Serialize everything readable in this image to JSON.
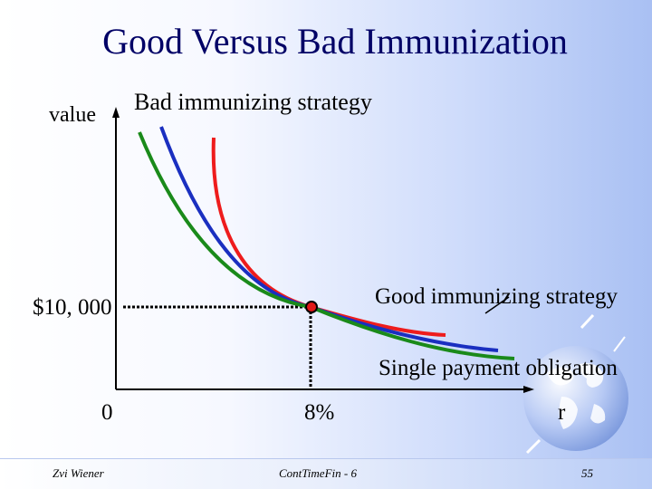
{
  "slide": {
    "title": "Good Versus Bad Immunization",
    "footer": {
      "author": "Zvi Wiener",
      "course": "ContTimeFin - 6",
      "page": "55"
    }
  },
  "diagram": {
    "y_axis_label": "value",
    "x_axis_label": "r",
    "origin_label": "0",
    "rate_label": "8%",
    "value_label": "$10, 000",
    "labels": {
      "bad": "Bad immunizing strategy",
      "good": "Good immunizing strategy",
      "single": "Single payment obligation"
    },
    "curve_colors": {
      "bad": "#ee1c1c",
      "single": "#1a2fc0",
      "good": "#1a8a1a",
      "point": "#e01818"
    },
    "decoration": "globe-icon"
  }
}
